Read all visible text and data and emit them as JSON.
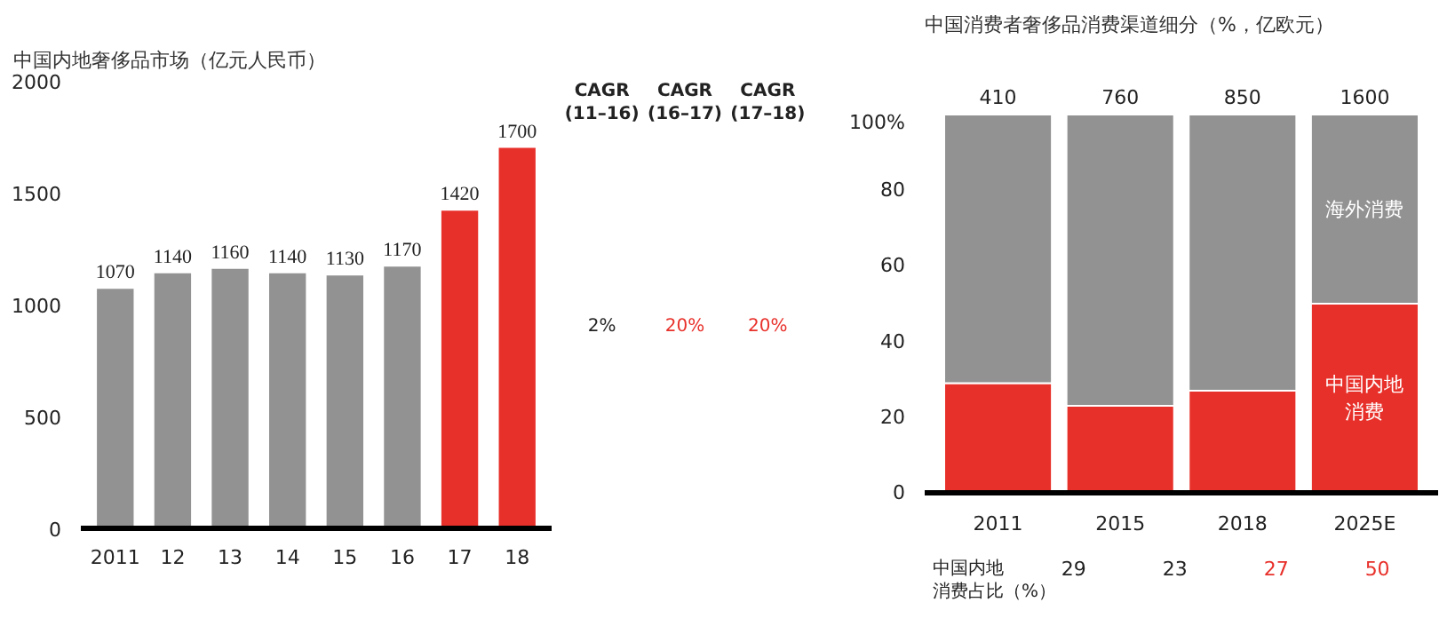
{
  "chart_data": [
    {
      "type": "bar",
      "title": "中国内地奢侈品市场（亿元人民币）",
      "categories": [
        "2011",
        "12",
        "13",
        "14",
        "15",
        "16",
        "17",
        "18"
      ],
      "values": [
        1070,
        1140,
        1160,
        1140,
        1130,
        1170,
        1420,
        1700
      ],
      "colors": [
        "#929292",
        "#929292",
        "#929292",
        "#929292",
        "#929292",
        "#929292",
        "#e8302a",
        "#e8302a"
      ],
      "ylim": [
        0,
        2000
      ],
      "yticks": [
        0,
        500,
        1000,
        1500,
        2000
      ],
      "grid": false,
      "data_labels": true,
      "annotations": [
        "CAGR\n(11–16)",
        "CAGR\n(16–17)",
        "CAGR\n(17–18)",
        "2%",
        "20%",
        "20%"
      ]
    },
    {
      "type": "bar",
      "title": "中国消费者奢侈品消费渠道细分（%，亿欧元）",
      "categories": [
        "2011",
        "2015",
        "2018",
        "2025E"
      ],
      "stacked": true,
      "series": [
        {
          "name": "中国内地消费",
          "color": "#e8302a",
          "values": [
            29,
            23,
            27,
            50
          ]
        },
        {
          "name": "海外消费",
          "color": "#929292",
          "values": [
            71,
            77,
            73,
            50
          ]
        }
      ],
      "ylim": [
        0,
        100
      ],
      "yticks": [
        0,
        20,
        40,
        60,
        80,
        {
          "value": 100,
          "label": "100%"
        }
      ],
      "grid": false,
      "annotations": [
        {
          "text": "410",
          "x": "2011",
          "y": 100
        },
        {
          "text": "760",
          "x": "2015",
          "y": 100
        },
        {
          "text": "850",
          "x": "2018",
          "y": 100
        },
        {
          "text": "1600",
          "x": "2025E",
          "y": 100
        },
        "中国内地消费占比（%）",
        "29",
        "23",
        "27",
        "50"
      ]
    }
  ]
}
